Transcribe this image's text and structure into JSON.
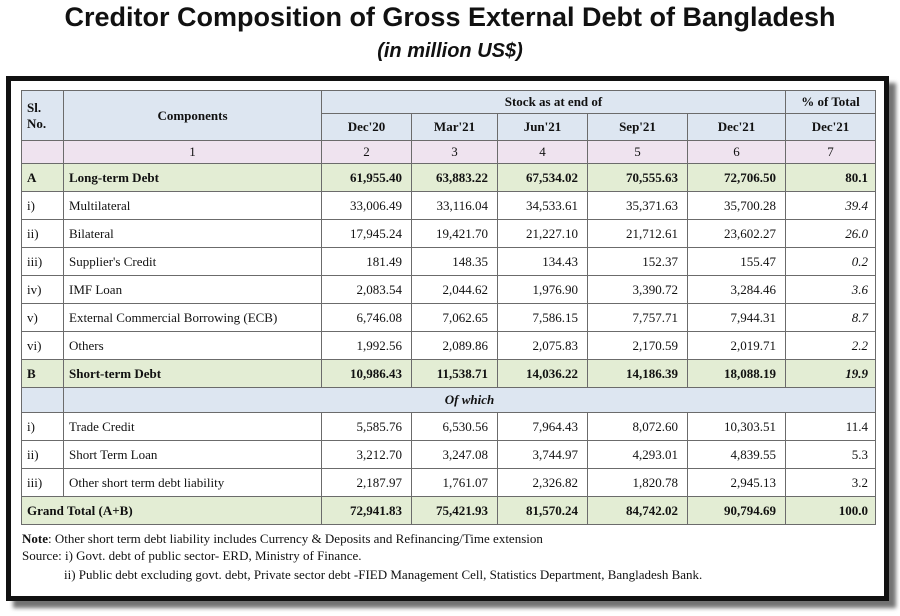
{
  "title": "Creditor Composition of Gross External Debt of Bangladesh",
  "subtitle": "(in million US$)",
  "header": {
    "sl_line1": "Sl.",
    "sl_line2": "No.",
    "components": "Components",
    "stock": "Stock as at end of",
    "periods": [
      "Dec'20",
      "Mar'21",
      "Jun'21",
      "Sep'21",
      "Dec'21"
    ],
    "pct_line1": "% of Total",
    "pct_line2": "Dec'21"
  },
  "index": [
    "1",
    "2",
    "3",
    "4",
    "5",
    "6",
    "7"
  ],
  "rows": [
    {
      "type": "bold",
      "sl": "A",
      "label": "Long-term Debt",
      "values": [
        "61,955.40",
        "63,883.22",
        "67,534.02",
        "70,555.63",
        "72,706.50"
      ],
      "pct": "80.1"
    },
    {
      "type": "row",
      "sl": "i)",
      "label": "Multilateral",
      "values": [
        "33,006.49",
        "33,116.04",
        "34,533.61",
        "35,371.63",
        "35,700.28"
      ],
      "pct": "39.4"
    },
    {
      "type": "row",
      "sl": "ii)",
      "label": "Bilateral",
      "values": [
        "17,945.24",
        "19,421.70",
        "21,227.10",
        "21,712.61",
        "23,602.27"
      ],
      "pct": "26.0"
    },
    {
      "type": "row",
      "sl": "iii)",
      "label": "Supplier's Credit",
      "values": [
        "181.49",
        "148.35",
        "134.43",
        "152.37",
        "155.47"
      ],
      "pct": "0.2"
    },
    {
      "type": "row",
      "sl": "iv)",
      "label": "IMF Loan",
      "values": [
        "2,083.54",
        "2,044.62",
        "1,976.90",
        "3,390.72",
        "3,284.46"
      ],
      "pct": "3.6"
    },
    {
      "type": "row",
      "sl": "v)",
      "label": "External Commercial Borrowing (ECB)",
      "values": [
        "6,746.08",
        "7,062.65",
        "7,586.15",
        "7,757.71",
        "7,944.31"
      ],
      "pct": "8.7"
    },
    {
      "type": "row",
      "sl": "vi)",
      "label": "Others",
      "values": [
        "1,992.56",
        "2,089.86",
        "2,075.83",
        "2,170.59",
        "2,019.71"
      ],
      "pct": "2.2"
    },
    {
      "type": "bold",
      "sl": "B",
      "label": "Short-term Debt",
      "values": [
        "10,986.43",
        "11,538.71",
        "14,036.22",
        "14,186.39",
        "18,088.19"
      ],
      "pct": "19.9",
      "pct_italic": true
    },
    {
      "type": "sub",
      "label": "Of which"
    },
    {
      "type": "row",
      "upright": true,
      "sl": "i)",
      "label": "Trade Credit",
      "values": [
        "5,585.76",
        "6,530.56",
        "7,964.43",
        "8,072.60",
        "10,303.51"
      ],
      "pct": "11.4"
    },
    {
      "type": "row",
      "upright": true,
      "sl": "ii)",
      "label": "Short Term Loan",
      "values": [
        "3,212.70",
        "3,247.08",
        "3,744.97",
        "4,293.01",
        "4,839.55"
      ],
      "pct": "5.3"
    },
    {
      "type": "row",
      "upright": true,
      "sl": "iii)",
      "label": "Other short term debt liability",
      "values": [
        "2,187.97",
        "1,761.07",
        "2,326.82",
        "1,820.78",
        "2,945.13"
      ],
      "pct": "3.2"
    },
    {
      "type": "gt",
      "label": "Grand Total (A+B)",
      "values": [
        "72,941.83",
        "75,421.93",
        "81,570.24",
        "84,742.02",
        "90,794.69"
      ],
      "pct": "100.0"
    }
  ],
  "notes": {
    "label": "Note",
    "text": ": Other short term debt liability includes Currency & Deposits and Refinancing/Time extension",
    "source1": "Source: i) Govt. debt of public sector- ERD, Ministry of Finance.",
    "source2": "ii) Public debt excluding govt. debt, Private sector debt -FIED Management Cell, Statistics Department, Bangladesh Bank."
  }
}
